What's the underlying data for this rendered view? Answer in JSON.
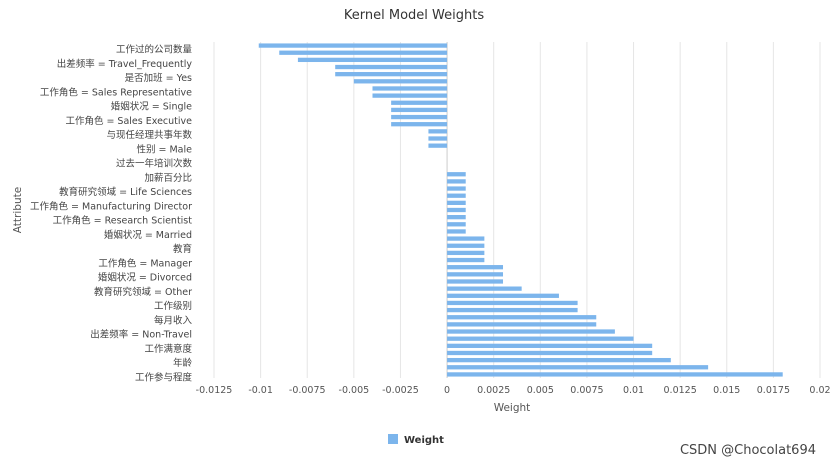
{
  "chart_data": {
    "type": "bar",
    "orientation": "horizontal",
    "title": "Kernel Model Weights",
    "xlabel": "Weight",
    "ylabel": "Attribute",
    "xlim": [
      -0.0125,
      0.02
    ],
    "xticks": [
      -0.0125,
      -0.01,
      -0.0075,
      -0.005,
      -0.0025,
      0,
      0.0025,
      0.005,
      0.0075,
      0.01,
      0.0125,
      0.015,
      0.0175,
      0.02
    ],
    "xtick_labels": [
      "-0.0125",
      "-0.01",
      "-0.0075",
      "-0.005",
      "-0.0025",
      "0",
      "0.0025",
      "0.005",
      "0.0075",
      "0.01",
      "0.0125",
      "0.015",
      "0.0175",
      "0.02"
    ],
    "grid": "vertical",
    "legend": {
      "position": "bottom-center",
      "entries": [
        "Weight"
      ]
    },
    "color": "#7cb5ec",
    "ytick_labels": [
      "工作过的公司数量",
      "出差频率 = Travel_Frequently",
      "是否加班 = Yes",
      "工作角色 = Sales Representative",
      "婚姻状况 = Single",
      "工作角色 = Sales Executive",
      "与现任经理共事年数",
      "性别 = Male",
      "过去一年培训次数",
      "加薪百分比",
      "教育研究领域 = Life Sciences",
      "工作角色 = Manufacturing Director",
      "工作角色 = Research Scientist",
      "婚姻状况 = Married",
      "教育",
      "工作角色 = Manager",
      "婚姻状况 = Divorced",
      "教育研究领域 = Other",
      "工作级别",
      "每月收入",
      "出差频率 = Non-Travel",
      "工作满意度",
      "年龄",
      "工作参与程度"
    ],
    "series": [
      {
        "name": "Weight",
        "values": [
          -0.0101,
          -0.009,
          -0.008,
          -0.006,
          -0.006,
          -0.005,
          -0.004,
          -0.004,
          -0.003,
          -0.003,
          -0.003,
          -0.003,
          -0.001,
          -0.001,
          -0.001,
          0.0,
          0.0,
          0.0,
          0.001,
          0.001,
          0.001,
          0.001,
          0.001,
          0.001,
          0.001,
          0.001,
          0.001,
          0.002,
          0.002,
          0.002,
          0.002,
          0.003,
          0.003,
          0.003,
          0.004,
          0.006,
          0.007,
          0.007,
          0.008,
          0.008,
          0.009,
          0.01,
          0.011,
          0.011,
          0.012,
          0.014,
          0.018
        ]
      }
    ]
  },
  "watermark": "CSDN @Chocolat694"
}
